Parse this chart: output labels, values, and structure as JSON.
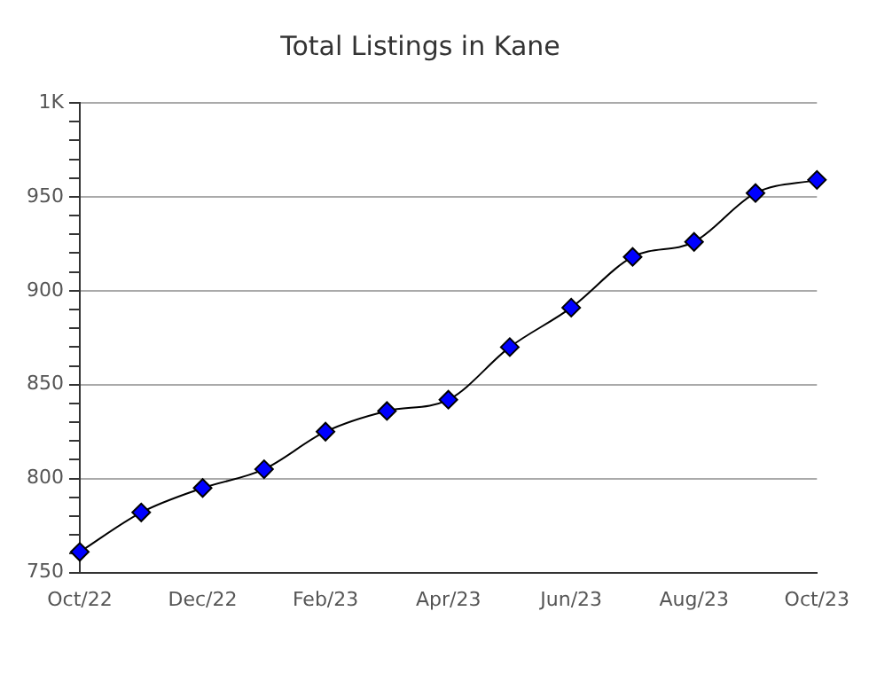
{
  "chart_data": {
    "type": "line",
    "title": "Total Listings in Kane",
    "categories": [
      "Oct/22",
      null,
      "Dec/22",
      null,
      "Feb/23",
      null,
      "Apr/23",
      null,
      "Jun/23",
      null,
      "Aug/23",
      null,
      "Oct/23"
    ],
    "series": [
      {
        "color": "#0000ff",
        "values": [
          761,
          782,
          795,
          805,
          825,
          836,
          842,
          870,
          891,
          918,
          926,
          952,
          959
        ]
      }
    ],
    "ylim": [
      750,
      1000
    ],
    "yticks": [
      750,
      {
        "value": 760,
        "label": null
      },
      {
        "value": 770,
        "label": null
      },
      {
        "value": 780,
        "label": null
      },
      {
        "value": 790,
        "label": null
      },
      800,
      {
        "value": 810,
        "label": null
      },
      {
        "value": 820,
        "label": null
      },
      {
        "value": 830,
        "label": null
      },
      {
        "value": 840,
        "label": null
      },
      850,
      {
        "value": 860,
        "label": null
      },
      {
        "value": 870,
        "label": null
      },
      {
        "value": 880,
        "label": null
      },
      {
        "value": 890,
        "label": null
      },
      900,
      {
        "value": 910,
        "label": null
      },
      {
        "value": 920,
        "label": null
      },
      {
        "value": 930,
        "label": null
      },
      {
        "value": 940,
        "label": null
      },
      950,
      {
        "value": 960,
        "label": null
      },
      {
        "value": 970,
        "label": null
      },
      {
        "value": 980,
        "label": null
      },
      {
        "value": 990,
        "label": null
      },
      {
        "value": 1000,
        "label": "1K"
      }
    ],
    "grid": "y",
    "legend": false,
    "marker": "diamond",
    "line_style": "solid"
  }
}
